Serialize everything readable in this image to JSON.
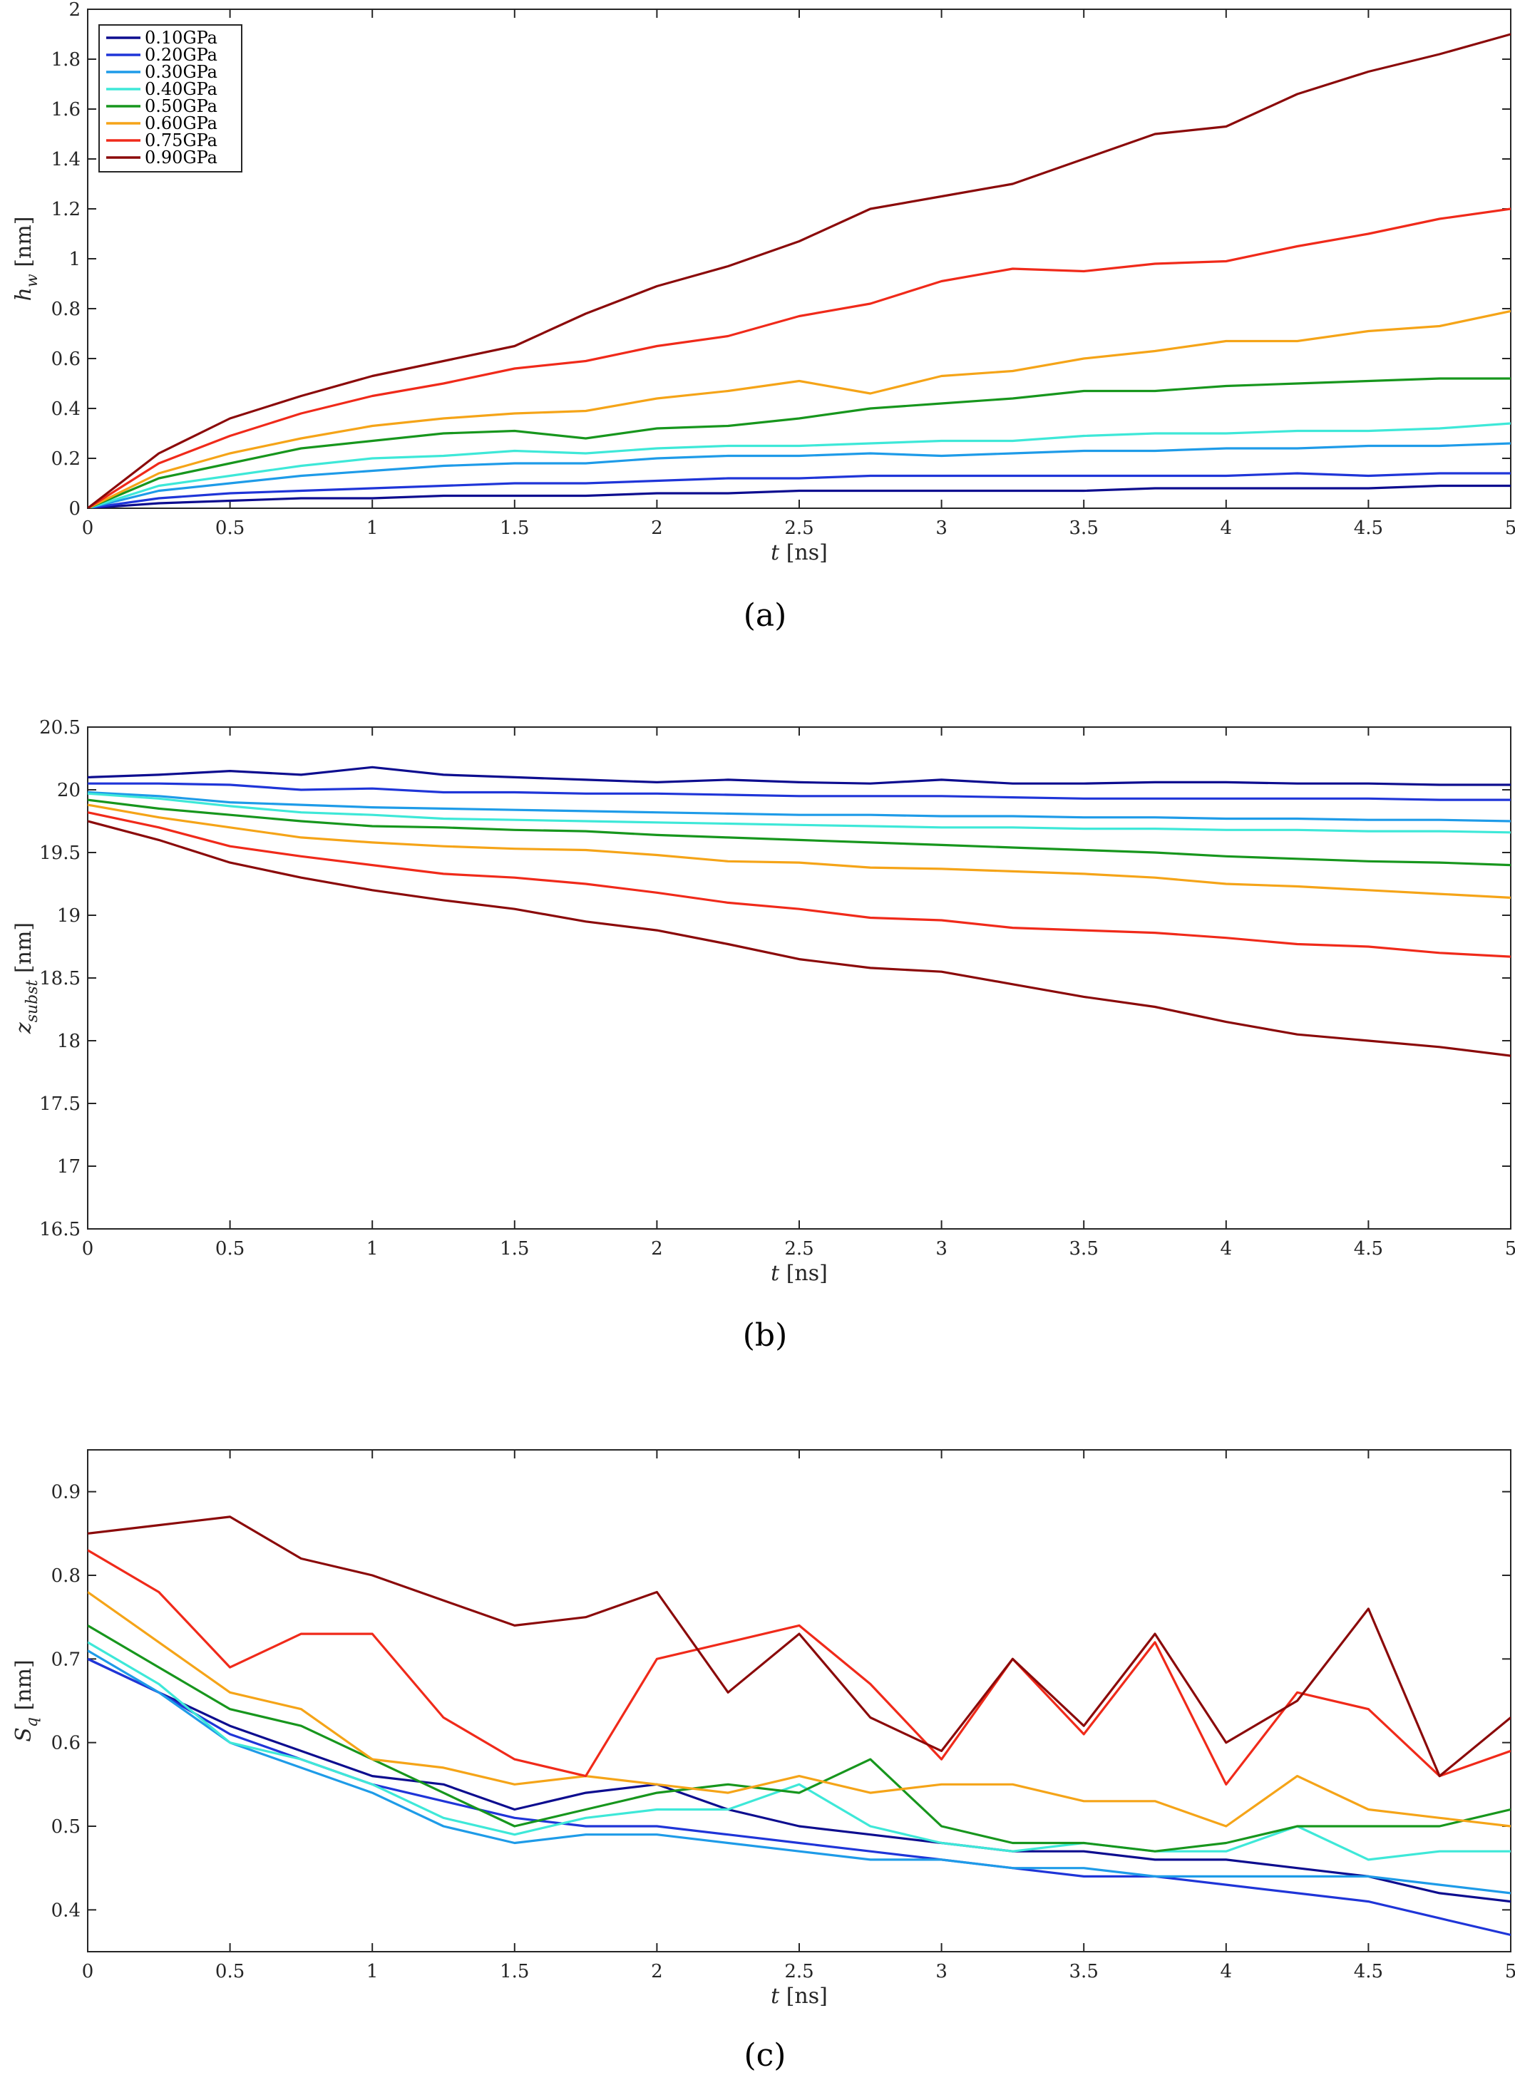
{
  "chart_data": [
    {
      "id": "a",
      "type": "line",
      "caption": "(a)",
      "xlabel": "t [ns]",
      "ylabel": "h_w [nm]",
      "xlim": [
        0,
        5
      ],
      "ylim": [
        0,
        2
      ],
      "xticks": [
        "0",
        "0.5",
        "1",
        "1.5",
        "2",
        "2.5",
        "3",
        "3.5",
        "4",
        "4.5",
        "5"
      ],
      "yticks": [
        "0",
        "0.2",
        "0.4",
        "0.6",
        "0.8",
        "1",
        "1.2",
        "1.4",
        "1.6",
        "1.8",
        "2"
      ],
      "legend": "top-left",
      "x": [
        0,
        0.25,
        0.5,
        0.75,
        1,
        1.25,
        1.5,
        1.75,
        2,
        2.25,
        2.5,
        2.75,
        3,
        3.25,
        3.5,
        3.75,
        4,
        4.25,
        4.5,
        4.75,
        5
      ],
      "series": [
        {
          "name": "0.10GPa",
          "color": "#0d0d8f",
          "values": [
            0,
            0.02,
            0.03,
            0.04,
            0.04,
            0.05,
            0.05,
            0.05,
            0.06,
            0.06,
            0.07,
            0.07,
            0.07,
            0.07,
            0.07,
            0.08,
            0.08,
            0.08,
            0.08,
            0.09,
            0.09
          ]
        },
        {
          "name": "0.20GPa",
          "color": "#1f35d8",
          "values": [
            0,
            0.04,
            0.06,
            0.07,
            0.08,
            0.09,
            0.1,
            0.1,
            0.11,
            0.12,
            0.12,
            0.13,
            0.13,
            0.13,
            0.13,
            0.13,
            0.13,
            0.14,
            0.13,
            0.14,
            0.14
          ]
        },
        {
          "name": "0.30GPa",
          "color": "#1e9be8",
          "values": [
            0,
            0.07,
            0.1,
            0.13,
            0.15,
            0.17,
            0.18,
            0.18,
            0.2,
            0.21,
            0.21,
            0.22,
            0.21,
            0.22,
            0.23,
            0.23,
            0.24,
            0.24,
            0.25,
            0.25,
            0.26
          ]
        },
        {
          "name": "0.40GPa",
          "color": "#3ee8d8",
          "values": [
            0,
            0.09,
            0.13,
            0.17,
            0.2,
            0.21,
            0.23,
            0.22,
            0.24,
            0.25,
            0.25,
            0.26,
            0.27,
            0.27,
            0.29,
            0.3,
            0.3,
            0.31,
            0.31,
            0.32,
            0.34
          ]
        },
        {
          "name": "0.50GPa",
          "color": "#17961d",
          "values": [
            0,
            0.12,
            0.18,
            0.24,
            0.27,
            0.3,
            0.31,
            0.28,
            0.32,
            0.33,
            0.36,
            0.4,
            0.42,
            0.44,
            0.47,
            0.47,
            0.49,
            0.5,
            0.51,
            0.52,
            0.52
          ]
        },
        {
          "name": "0.60GPa",
          "color": "#f5a418",
          "values": [
            0,
            0.14,
            0.22,
            0.28,
            0.33,
            0.36,
            0.38,
            0.39,
            0.44,
            0.47,
            0.51,
            0.46,
            0.53,
            0.55,
            0.6,
            0.63,
            0.67,
            0.67,
            0.71,
            0.73,
            0.79
          ]
        },
        {
          "name": "0.75GPa",
          "color": "#f02a1a",
          "values": [
            0,
            0.18,
            0.29,
            0.38,
            0.45,
            0.5,
            0.56,
            0.59,
            0.65,
            0.69,
            0.77,
            0.82,
            0.91,
            0.96,
            0.95,
            0.98,
            0.99,
            1.05,
            1.1,
            1.16,
            1.2
          ]
        },
        {
          "name": "0.90GPa",
          "color": "#8b0a0a",
          "values": [
            0,
            0.22,
            0.36,
            0.45,
            0.53,
            0.59,
            0.65,
            0.78,
            0.89,
            0.97,
            1.07,
            1.2,
            1.25,
            1.3,
            1.4,
            1.5,
            1.53,
            1.66,
            1.75,
            1.82,
            1.9
          ]
        }
      ]
    },
    {
      "id": "b",
      "type": "line",
      "caption": "(b)",
      "xlabel": "t [ns]",
      "ylabel": "z_subst [nm]",
      "xlim": [
        0,
        5
      ],
      "ylim": [
        16.5,
        20.5
      ],
      "xticks": [
        "0",
        "0.5",
        "1",
        "1.5",
        "2",
        "2.5",
        "3",
        "3.5",
        "4",
        "4.5",
        "5"
      ],
      "yticks": [
        "16.5",
        "17",
        "17.5",
        "18",
        "18.5",
        "19",
        "19.5",
        "20",
        "20.5"
      ],
      "x": [
        0,
        0.25,
        0.5,
        0.75,
        1,
        1.25,
        1.5,
        1.75,
        2,
        2.25,
        2.5,
        2.75,
        3,
        3.25,
        3.5,
        3.75,
        4,
        4.25,
        4.5,
        4.75,
        5
      ],
      "series": [
        {
          "name": "0.10GPa",
          "color": "#0d0d8f",
          "values": [
            20.1,
            20.12,
            20.15,
            20.12,
            20.18,
            20.12,
            20.1,
            20.08,
            20.06,
            20.08,
            20.06,
            20.05,
            20.08,
            20.05,
            20.05,
            20.06,
            20.06,
            20.05,
            20.05,
            20.04,
            20.04
          ]
        },
        {
          "name": "0.20GPa",
          "color": "#1f35d8",
          "values": [
            20.05,
            20.05,
            20.04,
            20.0,
            20.01,
            19.98,
            19.98,
            19.97,
            19.97,
            19.96,
            19.95,
            19.95,
            19.95,
            19.94,
            19.93,
            19.93,
            19.93,
            19.93,
            19.93,
            19.92,
            19.92
          ]
        },
        {
          "name": "0.30GPa",
          "color": "#1e9be8",
          "values": [
            19.98,
            19.95,
            19.9,
            19.88,
            19.86,
            19.85,
            19.84,
            19.83,
            19.82,
            19.81,
            19.8,
            19.8,
            19.79,
            19.79,
            19.78,
            19.78,
            19.77,
            19.77,
            19.76,
            19.76,
            19.75
          ]
        },
        {
          "name": "0.40GPa",
          "color": "#3ee8d8",
          "values": [
            19.97,
            19.93,
            19.87,
            19.82,
            19.8,
            19.77,
            19.76,
            19.75,
            19.74,
            19.73,
            19.72,
            19.71,
            19.7,
            19.7,
            19.69,
            19.69,
            19.68,
            19.68,
            19.67,
            19.67,
            19.66
          ]
        },
        {
          "name": "0.50GPa",
          "color": "#17961d",
          "values": [
            19.92,
            19.85,
            19.8,
            19.75,
            19.71,
            19.7,
            19.68,
            19.67,
            19.64,
            19.62,
            19.6,
            19.58,
            19.56,
            19.54,
            19.52,
            19.5,
            19.47,
            19.45,
            19.43,
            19.42,
            19.4
          ]
        },
        {
          "name": "0.60GPa",
          "color": "#f5a418",
          "values": [
            19.88,
            19.78,
            19.7,
            19.62,
            19.58,
            19.55,
            19.53,
            19.52,
            19.48,
            19.43,
            19.42,
            19.38,
            19.37,
            19.35,
            19.33,
            19.3,
            19.25,
            19.23,
            19.2,
            19.17,
            19.14
          ]
        },
        {
          "name": "0.75GPa",
          "color": "#f02a1a",
          "values": [
            19.82,
            19.7,
            19.55,
            19.47,
            19.4,
            19.33,
            19.3,
            19.25,
            19.18,
            19.1,
            19.05,
            18.98,
            18.96,
            18.9,
            18.88,
            18.86,
            18.82,
            18.77,
            18.75,
            18.7,
            18.67
          ]
        },
        {
          "name": "0.90GPa",
          "color": "#8b0a0a",
          "values": [
            19.75,
            19.6,
            19.42,
            19.3,
            19.2,
            19.12,
            19.05,
            18.95,
            18.88,
            18.77,
            18.65,
            18.58,
            18.55,
            18.45,
            18.35,
            18.27,
            18.15,
            18.05,
            18.0,
            17.95,
            17.88
          ]
        }
      ]
    },
    {
      "id": "c",
      "type": "line",
      "caption": "(c)",
      "xlabel": "t [ns]",
      "ylabel": "S_q [nm]",
      "xlim": [
        0,
        5
      ],
      "ylim": [
        0.35,
        0.95
      ],
      "xticks": [
        "0",
        "0.5",
        "1",
        "1.5",
        "2",
        "2.5",
        "3",
        "3.5",
        "4",
        "4.5",
        "5"
      ],
      "yticks": [
        "0.4",
        "0.5",
        "0.6",
        "0.7",
        "0.8",
        "0.9"
      ],
      "x": [
        0,
        0.25,
        0.5,
        0.75,
        1,
        1.25,
        1.5,
        1.75,
        2,
        2.25,
        2.5,
        2.75,
        3,
        3.25,
        3.5,
        3.75,
        4,
        4.25,
        4.5,
        4.75,
        5
      ],
      "series": [
        {
          "name": "0.10GPa",
          "color": "#0d0d8f",
          "values": [
            0.7,
            0.66,
            0.62,
            0.59,
            0.56,
            0.55,
            0.52,
            0.54,
            0.55,
            0.52,
            0.5,
            0.49,
            0.48,
            0.47,
            0.47,
            0.46,
            0.46,
            0.45,
            0.44,
            0.42,
            0.41
          ]
        },
        {
          "name": "0.20GPa",
          "color": "#1f35d8",
          "values": [
            0.7,
            0.66,
            0.61,
            0.58,
            0.55,
            0.53,
            0.51,
            0.5,
            0.5,
            0.49,
            0.48,
            0.47,
            0.46,
            0.45,
            0.44,
            0.44,
            0.43,
            0.42,
            0.41,
            0.39,
            0.37
          ]
        },
        {
          "name": "0.30GPa",
          "color": "#1e9be8",
          "values": [
            0.71,
            0.66,
            0.6,
            0.57,
            0.54,
            0.5,
            0.48,
            0.49,
            0.49,
            0.48,
            0.47,
            0.46,
            0.46,
            0.45,
            0.45,
            0.44,
            0.44,
            0.44,
            0.44,
            0.43,
            0.42
          ]
        },
        {
          "name": "0.40GPa",
          "color": "#3ee8d8",
          "values": [
            0.72,
            0.67,
            0.6,
            0.58,
            0.55,
            0.51,
            0.49,
            0.51,
            0.52,
            0.52,
            0.55,
            0.5,
            0.48,
            0.47,
            0.48,
            0.47,
            0.47,
            0.5,
            0.46,
            0.47,
            0.47
          ]
        },
        {
          "name": "0.50GPa",
          "color": "#17961d",
          "values": [
            0.74,
            0.69,
            0.64,
            0.62,
            0.58,
            0.54,
            0.5,
            0.52,
            0.54,
            0.55,
            0.54,
            0.58,
            0.5,
            0.48,
            0.48,
            0.47,
            0.48,
            0.5,
            0.5,
            0.5,
            0.52
          ]
        },
        {
          "name": "0.60GPa",
          "color": "#f5a418",
          "values": [
            0.78,
            0.72,
            0.66,
            0.64,
            0.58,
            0.57,
            0.55,
            0.56,
            0.55,
            0.54,
            0.56,
            0.54,
            0.55,
            0.55,
            0.53,
            0.53,
            0.5,
            0.56,
            0.52,
            0.51,
            0.5
          ]
        },
        {
          "name": "0.75GPa",
          "color": "#f02a1a",
          "values": [
            0.83,
            0.78,
            0.69,
            0.73,
            0.73,
            0.63,
            0.58,
            0.56,
            0.7,
            0.72,
            0.74,
            0.67,
            0.58,
            0.7,
            0.61,
            0.72,
            0.55,
            0.66,
            0.64,
            0.56,
            0.59
          ]
        },
        {
          "name": "0.90GPa",
          "color": "#8b0a0a",
          "values": [
            0.85,
            0.86,
            0.87,
            0.82,
            0.8,
            0.77,
            0.74,
            0.75,
            0.78,
            0.66,
            0.73,
            0.63,
            0.59,
            0.7,
            0.62,
            0.73,
            0.6,
            0.65,
            0.76,
            0.56,
            0.63
          ]
        }
      ]
    }
  ]
}
